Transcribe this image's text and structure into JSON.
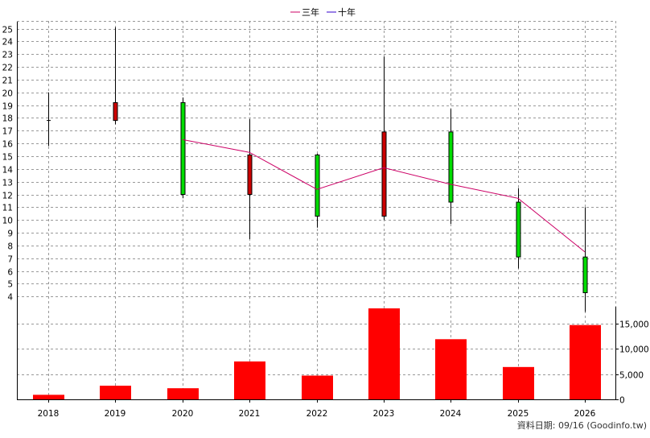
{
  "legend": {
    "items": [
      {
        "label": "三年",
        "color": "#cc0066"
      },
      {
        "label": "十年",
        "color": "#3300cc"
      }
    ]
  },
  "footer": {
    "text": "資料日期: 09/16 (Goodinfo.tw)"
  },
  "chart_data": [
    {
      "type": "candlestick",
      "x": [
        "2018",
        "2019",
        "2020",
        "2021",
        "2022",
        "2023",
        "2024",
        "2025",
        "2026"
      ],
      "candles": [
        {
          "year": "2018",
          "open": 17.8,
          "close": 17.8,
          "high": 20.0,
          "low": 15.8,
          "direction": "flat"
        },
        {
          "year": "2019",
          "open": 17.8,
          "close": 19.2,
          "high": 25.1,
          "low": 17.5,
          "direction": "up"
        },
        {
          "year": "2020",
          "open": 19.2,
          "close": 12.0,
          "high": 19.6,
          "low": 11.7,
          "direction": "down"
        },
        {
          "year": "2021",
          "open": 12.0,
          "close": 15.1,
          "high": 17.9,
          "low": 8.5,
          "direction": "up"
        },
        {
          "year": "2022",
          "open": 15.1,
          "close": 10.3,
          "high": 15.2,
          "low": 9.4,
          "direction": "down"
        },
        {
          "year": "2023",
          "open": 10.3,
          "close": 16.9,
          "high": 22.8,
          "low": 10.0,
          "direction": "up"
        },
        {
          "year": "2024",
          "open": 16.9,
          "close": 11.4,
          "high": 18.7,
          "low": 9.7,
          "direction": "down"
        },
        {
          "year": "2025",
          "open": 11.4,
          "close": 7.1,
          "high": 12.5,
          "low": 6.2,
          "direction": "down"
        },
        {
          "year": "2026",
          "open": 7.1,
          "close": 4.3,
          "high": 11.0,
          "low": 2.8,
          "direction": "down"
        }
      ],
      "series": [
        {
          "name": "三年",
          "x": [
            "2020",
            "2021",
            "2022",
            "2023",
            "2024",
            "2025",
            "2026"
          ],
          "values": [
            16.3,
            15.3,
            12.4,
            14.1,
            12.8,
            11.7,
            7.5
          ],
          "color": "#cc0066"
        }
      ],
      "y_ticks": [
        "4",
        "5",
        "6",
        "7",
        "8",
        "9",
        "10",
        "11",
        "12",
        "13",
        "14",
        "15",
        "16",
        "17",
        "18",
        "19",
        "20",
        "21",
        "22",
        "23",
        "24",
        "25"
      ],
      "ylim": [
        3.2,
        25.6
      ],
      "grid": true,
      "colors": {
        "up": "#cc0000",
        "down": "#00dd00",
        "line": "#cc0066"
      }
    },
    {
      "type": "bar",
      "categories": [
        "2018",
        "2019",
        "2020",
        "2021",
        "2022",
        "2023",
        "2024",
        "2025",
        "2026"
      ],
      "values": [
        900,
        2700,
        2200,
        7500,
        4700,
        18000,
        11900,
        6400,
        14700
      ],
      "y_ticks": [
        "0",
        "5,000",
        "10,000",
        "15,000"
      ],
      "ylim": [
        0,
        18000
      ],
      "grid": true,
      "color": "#ff0000"
    }
  ]
}
